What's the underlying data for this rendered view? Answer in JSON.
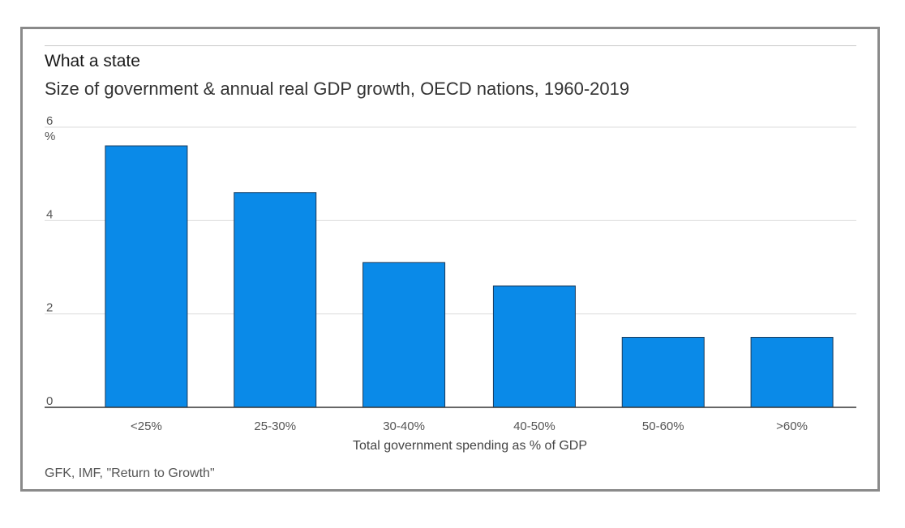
{
  "chart_data": {
    "type": "bar",
    "title": "What a state",
    "subtitle": "Size of government & annual real GDP growth, OECD nations, 1960-2019",
    "ylabel": "%",
    "xlabel": "Total government spending as % of GDP",
    "source": "GFK, IMF, \"Return to Growth\"",
    "categories": [
      "<25%",
      "25-30%",
      "30-40%",
      "40-50%",
      "50-60%",
      ">60%"
    ],
    "values": [
      5.6,
      4.6,
      3.1,
      2.6,
      1.5,
      1.5
    ],
    "ylim": [
      0,
      6
    ],
    "yticks": [
      0,
      2,
      4,
      6
    ],
    "grid": true,
    "bar_color": "#0a8ae8"
  }
}
